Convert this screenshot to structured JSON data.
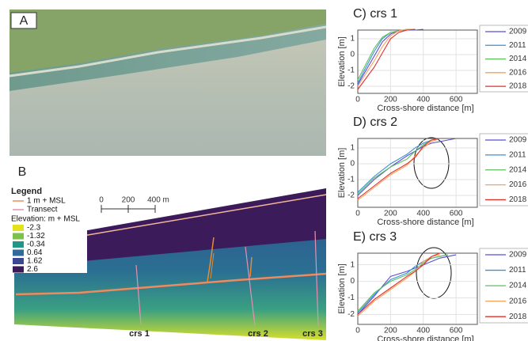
{
  "panel_a": {
    "label": "A"
  },
  "panel_b": {
    "label": "B",
    "legend_title": "Legend",
    "line_label": "1 m + MSL",
    "line_color": "#f08a5d",
    "transect_label": "Transect",
    "transect_color": "#e58fb4",
    "elevation_title": "Elevation: m + MSL",
    "items": [
      {
        "label": "-2.3",
        "color": "#e3e21e"
      },
      {
        "label": "-1.32",
        "color": "#7bc24b"
      },
      {
        "label": "-0.34",
        "color": "#23968a"
      },
      {
        "label": "0.64",
        "color": "#2f6a99"
      },
      {
        "label": "1.62",
        "color": "#3b4894"
      },
      {
        "label": "2.6",
        "color": "#3b1b5a"
      }
    ],
    "scale": [
      "0",
      "200",
      "400 m"
    ],
    "transects": [
      "crs 1",
      "crs 2",
      "crs 3"
    ]
  },
  "chart_data": [
    {
      "type": "line",
      "title": "C) crs 1",
      "x_label": "Cross-shore distance [m]",
      "y_label": "Elevation [m]",
      "x": [
        0,
        50,
        100,
        150,
        200,
        250,
        300,
        350,
        400
      ],
      "xlim": [
        0,
        730
      ],
      "ylim": [
        -2.45,
        1.55
      ],
      "xticks": [
        0,
        200,
        400,
        600
      ],
      "yticks": [
        -2,
        -1,
        0,
        1
      ],
      "series": [
        {
          "name": "2009",
          "color": "#5a4fcf",
          "values": [
            -1.9,
            -1.0,
            -0.1,
            0.8,
            1.3,
            1.5,
            1.55,
            1.55,
            1.6
          ]
        },
        {
          "name": "2011",
          "color": "#3b8fd9",
          "values": [
            -1.8,
            -0.8,
            0.2,
            1.0,
            1.4,
            1.5,
            1.6,
            1.6,
            null
          ]
        },
        {
          "name": "2014",
          "color": "#5dbf5d",
          "values": [
            -1.6,
            -0.6,
            0.4,
            1.1,
            1.4,
            1.5,
            1.6,
            1.6,
            null
          ]
        },
        {
          "name": "2016",
          "color": "#f5a25a",
          "values": [
            -2.0,
            -1.2,
            -0.4,
            0.5,
            1.2,
            1.5,
            1.6,
            1.6,
            null
          ]
        },
        {
          "name": "2018",
          "color": "#e0302a",
          "values": [
            -2.2,
            -1.5,
            -0.8,
            0.1,
            1.0,
            1.4,
            1.55,
            1.6,
            null
          ]
        }
      ]
    },
    {
      "type": "line",
      "title": "D) crs 2",
      "x_label": "Cross-shore distance [m]",
      "y_label": "Elevation [m]",
      "x": [
        0,
        100,
        200,
        300,
        350,
        400,
        450,
        500,
        550,
        600
      ],
      "xlim": [
        0,
        730
      ],
      "ylim": [
        -2.75,
        1.6
      ],
      "xticks": [
        0,
        200,
        400,
        600
      ],
      "yticks": [
        -2,
        -1,
        0,
        1
      ],
      "series": [
        {
          "name": "2009",
          "color": "#5a4fcf",
          "values": [
            -2.0,
            -1.0,
            -0.2,
            0.5,
            0.8,
            1.1,
            1.3,
            1.4,
            1.5,
            1.6
          ]
        },
        {
          "name": "2011",
          "color": "#3b8fd9",
          "values": [
            -1.8,
            -0.8,
            0,
            0.6,
            1.0,
            1.3,
            1.5,
            1.6,
            null,
            null
          ]
        },
        {
          "name": "2014",
          "color": "#5dbf5d",
          "values": [
            -1.9,
            -0.9,
            -0.2,
            0.3,
            0.8,
            1.2,
            1.5,
            1.6,
            null,
            null
          ]
        },
        {
          "name": "2016",
          "color": "#f5a25a",
          "values": [
            -2.3,
            -1.5,
            -0.7,
            -0.1,
            0.5,
            1.0,
            1.4,
            1.6,
            null,
            null
          ]
        },
        {
          "name": "2018",
          "color": "#e0302a",
          "values": [
            -2.2,
            -1.4,
            -0.6,
            0,
            0.4,
            1.1,
            1.5,
            1.6,
            null,
            null
          ]
        }
      ]
    },
    {
      "type": "line",
      "title": "E) crs 3",
      "x_label": "Cross-shore distance [m]",
      "y_label": "Elevation [m]",
      "x": [
        0,
        100,
        200,
        300,
        350,
        400,
        450,
        500,
        550,
        600
      ],
      "xlim": [
        0,
        730
      ],
      "ylim": [
        -2.6,
        1.7
      ],
      "xticks": [
        0,
        200,
        400,
        600
      ],
      "yticks": [
        -2,
        -1,
        0,
        1
      ],
      "series": [
        {
          "name": "2009",
          "color": "#5a4fcf",
          "values": [
            -2.0,
            -0.9,
            0.3,
            0.6,
            0.8,
            1.0,
            1.2,
            1.4,
            1.5,
            1.6
          ]
        },
        {
          "name": "2011",
          "color": "#3b8fd9",
          "values": [
            -1.9,
            -0.8,
            0.1,
            0.5,
            0.9,
            1.2,
            1.4,
            1.5,
            1.6,
            null
          ]
        },
        {
          "name": "2014",
          "color": "#5dbf5d",
          "values": [
            -1.8,
            -0.7,
            0,
            0.4,
            0.7,
            1.1,
            1.4,
            1.5,
            1.6,
            null
          ]
        },
        {
          "name": "2016",
          "color": "#f5a25a",
          "values": [
            -2.1,
            -1.2,
            -0.5,
            0.2,
            0.6,
            1.2,
            1.5,
            1.6,
            null,
            null
          ]
        },
        {
          "name": "2018",
          "color": "#e0302a",
          "values": [
            -2.0,
            -1.1,
            -0.4,
            0.3,
            0.6,
            1.0,
            1.5,
            1.7,
            null,
            null
          ]
        }
      ]
    }
  ]
}
